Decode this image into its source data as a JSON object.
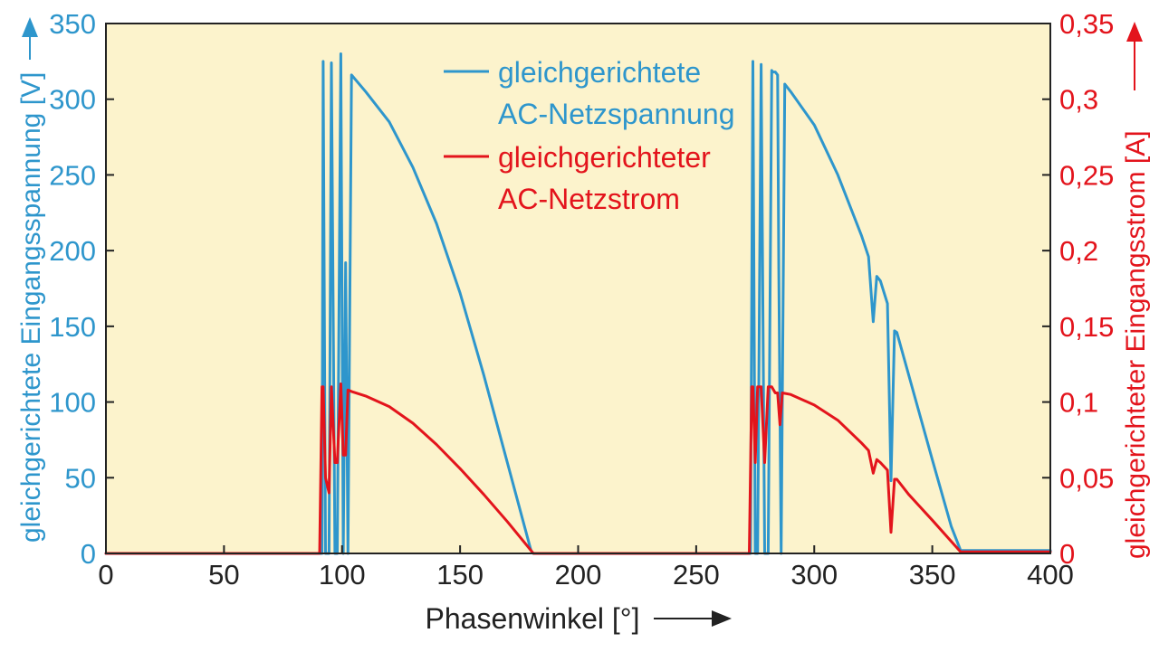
{
  "colors": {
    "plot_bg": "#fcf3cc",
    "voltage": "#2e96cc",
    "current": "#e3141c",
    "axis": "#222222"
  },
  "chart_data": {
    "type": "line",
    "xlabel": "Phasenwinkel [°]",
    "ylabel_left": "gleichgerichtete Eingangsspannung [V]",
    "ylabel_right": "gleichgerichteter Eingangsstrom [A]",
    "xlim": [
      0,
      400
    ],
    "ylim_left": [
      0,
      350
    ],
    "ylim_right": [
      0,
      0.35
    ],
    "x_ticks": [
      "0",
      "50",
      "100",
      "150",
      "200",
      "250",
      "300",
      "350",
      "400"
    ],
    "y_left_ticks": [
      "0",
      "50",
      "100",
      "150",
      "200",
      "250",
      "300",
      "350"
    ],
    "y_right_ticks": [
      "0",
      "0,05",
      "0,1",
      "0,15",
      "0,2",
      "0,25",
      "0,3",
      "0,35"
    ],
    "grid": false,
    "legend_position": "top-center",
    "series": [
      {
        "name_lines": [
          "gleichgerichtete",
          "AC-Netzspannung"
        ],
        "axis": "left",
        "x": [
          0,
          91.5,
          92,
          93,
          94.5,
          95.5,
          97,
          98,
          99.5,
          100.5,
          101.5,
          102.5,
          104,
          110,
          120,
          130,
          140,
          150,
          160,
          170,
          180,
          181,
          273,
          274,
          275,
          276,
          277.5,
          279,
          280.5,
          282,
          282.5,
          283.5,
          284.5,
          285,
          286,
          287.5,
          290,
          300,
          310,
          320,
          323,
          325,
          326.5,
          328,
          331,
          332.5,
          334,
          335,
          340,
          350,
          358,
          362,
          400
        ],
        "y": [
          0,
          0,
          325,
          0,
          0,
          324,
          0,
          0,
          330,
          0,
          192,
          0,
          316,
          305,
          285,
          255,
          218,
          172,
          118,
          60,
          2,
          0,
          0,
          325,
          0,
          0,
          323,
          0,
          0,
          319,
          318,
          318,
          316,
          188,
          0,
          310,
          305,
          283,
          250,
          210,
          196,
          153,
          183,
          180,
          165,
          48,
          147,
          146,
          118,
          62,
          18,
          2,
          2
        ]
      },
      {
        "name_lines": [
          "gleichgerichteter",
          "AC-Netzstrom"
        ],
        "axis": "right",
        "x": [
          0,
          90.5,
          91.5,
          92,
          93,
          94.5,
          95.5,
          97,
          98,
          99.5,
          100.5,
          101.5,
          102.5,
          104,
          110,
          120,
          130,
          140,
          150,
          160,
          170,
          180,
          181,
          272.5,
          273.5,
          274,
          275,
          276,
          277.5,
          279,
          280.5,
          282,
          283.5,
          284.5,
          285.5,
          286.5,
          290,
          300,
          310,
          320,
          323,
          325,
          326.5,
          328,
          331,
          332.5,
          334,
          335,
          340,
          350,
          358,
          362,
          400
        ],
        "y": [
          0,
          0,
          0.11,
          0.11,
          0.05,
          0.04,
          0.11,
          0.06,
          0.06,
          0.112,
          0.065,
          0.065,
          0.108,
          0.107,
          0.104,
          0.097,
          0.086,
          0.072,
          0.056,
          0.039,
          0.021,
          0.002,
          0,
          0,
          0.11,
          0.11,
          0.06,
          0.11,
          0.11,
          0.06,
          0.11,
          0.11,
          0.106,
          0.106,
          0.085,
          0.106,
          0.105,
          0.098,
          0.088,
          0.073,
          0.068,
          0.053,
          0.062,
          0.06,
          0.055,
          0.014,
          0.049,
          0.049,
          0.039,
          0.022,
          0.008,
          0.001,
          0.001
        ]
      }
    ]
  }
}
